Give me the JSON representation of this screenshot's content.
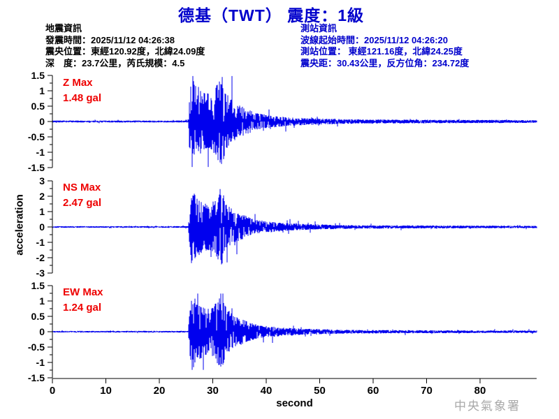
{
  "title": "德基（TWT） 震度：1級",
  "quake_info": {
    "heading": "地震資訊",
    "line1": "發震時間：2025/11/12 04:26:38",
    "line2": "震央位置：東經120.92度，北緯24.09度",
    "line3": "深　度：23.7公里，芮氏規模：4.5"
  },
  "station_info": {
    "heading": "測站資訊",
    "line1": "波線起始時間：2025/11/12 04:26:20",
    "line2": "測站位置： 東經121.16度，北緯24.25度",
    "line3": "震央距：30.43公里，反方位角：234.72度"
  },
  "watermark": "中央氣象署",
  "colors": {
    "accent_blue": "#0000cc",
    "waveform_blue": "#0000ee",
    "alert_red": "#ee0000",
    "axis_black": "#000000",
    "watermark_gray": "#a8a8a8"
  },
  "chart_data": {
    "type": "line",
    "xlabel": "second",
    "ylabel": "acceleration",
    "x_range": [
      0,
      90.5
    ],
    "x_ticks": [
      0,
      10,
      20,
      30,
      40,
      50,
      60,
      70,
      80
    ],
    "event_onset_s": 25.5,
    "envelope": [
      [
        0,
        0.022
      ],
      [
        25.4,
        0.022
      ],
      [
        25.7,
        0.6
      ],
      [
        26.1,
        1
      ],
      [
        27,
        0.8
      ],
      [
        28.5,
        0.62
      ],
      [
        30,
        0.66
      ],
      [
        31.7,
        1
      ],
      [
        32.5,
        0.62
      ],
      [
        34,
        0.42
      ],
      [
        36,
        0.3
      ],
      [
        38,
        0.2
      ],
      [
        40,
        0.15
      ],
      [
        43,
        0.11
      ],
      [
        46,
        0.085
      ],
      [
        50,
        0.07
      ],
      [
        55,
        0.05
      ],
      [
        65,
        0.042
      ],
      [
        75,
        0.038
      ],
      [
        90.5,
        0.032
      ]
    ],
    "traces": [
      {
        "name": "Z",
        "label": "Z Max",
        "max_label": "1.48 gal",
        "max_gal": 1.48,
        "ylim": [
          -1.5,
          1.5
        ],
        "y_ticks": [
          1.5,
          1,
          0.5,
          0,
          -0.5,
          -1,
          -1.5
        ],
        "peaks": [
          {
            "t": 26.1,
            "v": -1.48
          },
          {
            "t": 31.8,
            "v": 1.45
          }
        ],
        "seed": 7
      },
      {
        "name": "NS",
        "label": "NS Max",
        "max_label": "2.47 gal",
        "max_gal": 2.47,
        "ylim": [
          -3,
          3
        ],
        "y_ticks": [
          3,
          2,
          1,
          0,
          -1,
          -2,
          -3
        ],
        "peaks": [
          {
            "t": 26.0,
            "v": -2.35
          },
          {
            "t": 31.4,
            "v": 2.47
          }
        ],
        "seed": 13
      },
      {
        "name": "EW",
        "label": "EW Max",
        "max_label": "1.24 gal",
        "max_gal": 1.24,
        "ylim": [
          -1.5,
          1.5
        ],
        "y_ticks": [
          1.5,
          1,
          0.5,
          0,
          -0.5,
          -1,
          -1.5
        ],
        "peaks": [
          {
            "t": 26.2,
            "v": -1.24
          },
          {
            "t": 31.9,
            "v": 1.2
          }
        ],
        "seed": 21
      }
    ]
  }
}
